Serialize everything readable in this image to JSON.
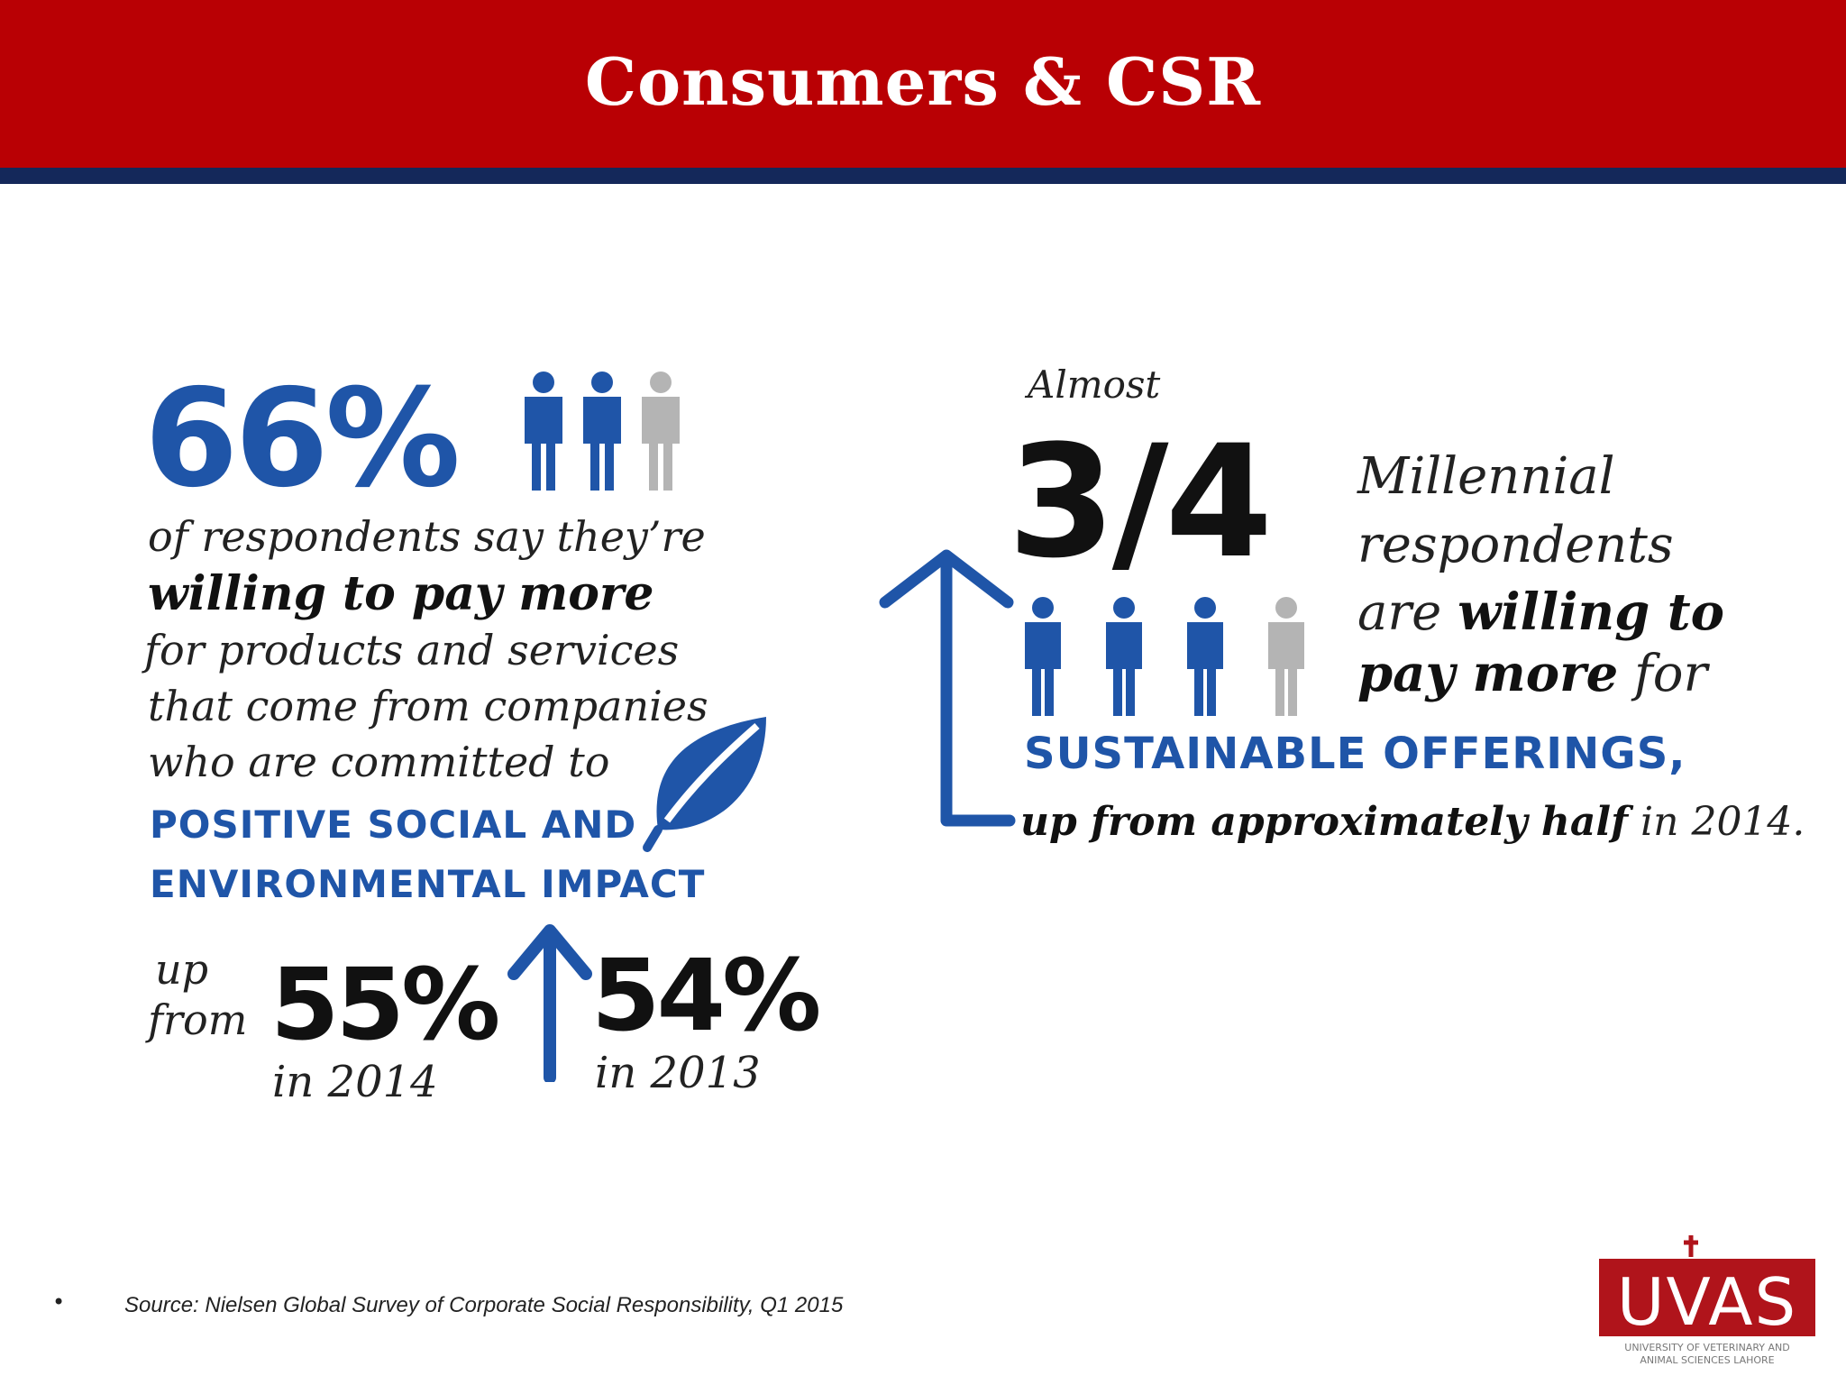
{
  "header": {
    "title": "Consumers & CSR"
  },
  "left": {
    "stat": "66%",
    "line1": "of respondents say they’re",
    "line2": "willing to pay more",
    "line3": "for products and services",
    "line4": "that come from companies",
    "line5": "who are committed to",
    "caps1": "POSITIVE SOCIAL AND",
    "caps2": "ENVIRONMENTAL IMPACT",
    "up": "up",
    "from": "from",
    "stat2014": "55%",
    "year2014": "in 2014",
    "stat2013": "54%",
    "year2013": "in 2013"
  },
  "right": {
    "almost": "Almost",
    "fraction": "3/4",
    "line1": "Millennial",
    "line2": "respondents",
    "line3_prefix": "are ",
    "line3_bold": "willing to",
    "line4_bold": "pay more",
    "line4_suffix": " for",
    "caps": "SUSTAINABLE OFFERINGS,",
    "bottom_bold": "up from approximately half",
    "bottom_suffix": " in 2014."
  },
  "footer": {
    "bullet": "•",
    "source": "Source: Nielsen Global Survey of Corporate Social Responsibility, Q1 2015"
  },
  "logo": {
    "name": "UVAS",
    "subtitle_line1": "UNIVERSITY OF VETERINARY AND",
    "subtitle_line2": "ANIMAL SCIENCES LAHORE"
  },
  "colors": {
    "header_red": "#b90004",
    "stripe_navy": "#14285a",
    "blue": "#1f55a8",
    "gray": "#b4b4b4"
  }
}
